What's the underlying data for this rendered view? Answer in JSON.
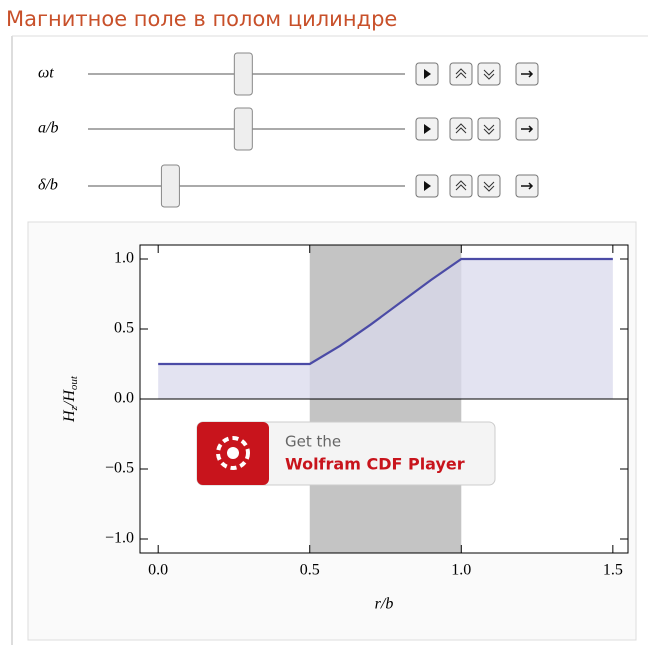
{
  "header": {
    "title": "Магнитное поле в полом цилиндре"
  },
  "controls": [
    {
      "label": "ωt",
      "position": 0.49
    },
    {
      "label": "a/b",
      "position": 0.49
    },
    {
      "label": "δ/b",
      "position": 0.26
    }
  ],
  "chart_data": {
    "type": "line",
    "x": [
      0,
      0.5,
      0.6,
      0.7,
      0.8,
      0.9,
      1.0,
      1.5
    ],
    "values": [
      0.25,
      0.25,
      0.38,
      0.53,
      0.69,
      0.85,
      1.0,
      1.0
    ],
    "color": "#4b4ba6",
    "fill_color": "#d9d9ec",
    "shaded": [
      0.5,
      1.0
    ],
    "shaded_color": "#c4c4c4",
    "xlim": [
      -0.06,
      1.55
    ],
    "ylim": [
      -1.1,
      1.1
    ],
    "xticks": [
      {
        "value": 0,
        "label": "0.0"
      },
      0.5,
      {
        "value": 1,
        "label": "1.0"
      },
      1.5
    ],
    "yticks": [
      {
        "value": 1,
        "label": "1.0"
      },
      0.5,
      {
        "value": 0,
        "label": "0.0"
      },
      {
        "value": -0.5,
        "label": "−0.5"
      },
      {
        "value": -1,
        "label": "−1.0"
      }
    ],
    "xlabel": "r/b",
    "ylabel_parts": [
      "H",
      "z",
      "/H",
      "out"
    ]
  },
  "banner": {
    "line1": "Get the",
    "line2": "Wolfram CDF Player"
  }
}
